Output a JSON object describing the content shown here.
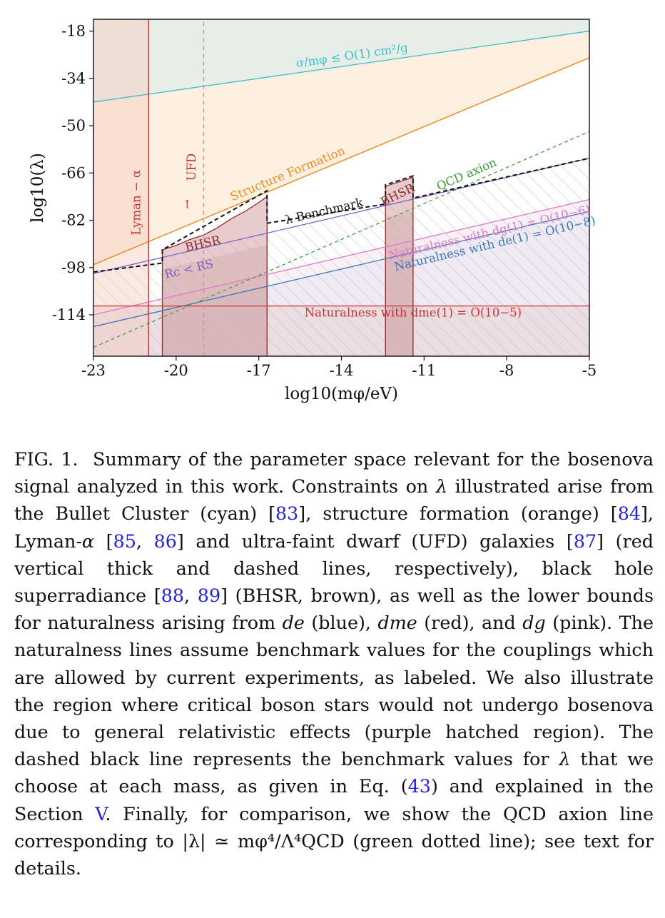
{
  "chart_data": {
    "type": "line",
    "xlabel": "log10(mφ/eV)",
    "ylabel": "log10(λ)",
    "xlim": [
      -23,
      -5
    ],
    "ylim": [
      -128,
      -14
    ],
    "xticks": [
      -23,
      -20,
      -17,
      -14,
      -11,
      -8,
      -5
    ],
    "yticks": [
      -18,
      -34,
      -50,
      -66,
      -82,
      -98,
      -114
    ],
    "grid": false,
    "series": [
      {
        "name": "σ/mφ ≲ O(1) cm²/g",
        "color": "#3cbfcb",
        "x": [
          -23,
          -5
        ],
        "y": [
          -42,
          -18
        ]
      },
      {
        "name": "Structure Formation",
        "color": "#f08a24",
        "x": [
          -23,
          -5
        ],
        "y": [
          -97,
          -27
        ]
      },
      {
        "name": "QCD axion",
        "color": "#3a9a3a",
        "style": "dashed",
        "x": [
          -23,
          -5
        ],
        "y": [
          -125,
          -52
        ]
      },
      {
        "name": "λ Benchmark",
        "color": "#111111",
        "style": "dashed",
        "x": [
          -23,
          -20.5,
          -20.5,
          -16.7,
          -16.7,
          -12.4,
          -12.4,
          -11.4,
          -11.4,
          -5
        ],
        "y": [
          -99.5,
          -96.5,
          -92,
          -72,
          -83,
          -76.5,
          -70,
          -67,
          -74.5,
          -61
        ]
      },
      {
        "name": "BHSR",
        "color": "#8b2a2a",
        "x": [
          -20.5,
          -20.5,
          -20,
          -19.5,
          -19,
          -18.5,
          -18,
          -17.5,
          -17,
          -16.7,
          -16.7
        ],
        "y": [
          -128,
          -92,
          -90.5,
          -88.5,
          -87,
          -84.5,
          -81.5,
          -79,
          -76,
          -74,
          -128
        ]
      },
      {
        "name": "BHSR",
        "color": "#8b2a2a",
        "x": [
          -12.4,
          -12.4,
          -11.4,
          -11.4
        ],
        "y": [
          -128,
          -70.5,
          -67.5,
          -128
        ]
      },
      {
        "name": "Rc < Rs",
        "color": "#7a5fc8",
        "x": [
          -23,
          -5
        ],
        "y": [
          -100,
          -61
        ]
      },
      {
        "name": "Naturalness with dg(1) = O(10^-6)",
        "color": "#e07ac8",
        "x": [
          -23,
          -5
        ],
        "y": [
          -114,
          -75
        ]
      },
      {
        "name": "Naturalness with de(1) = O(10^-8)",
        "color": "#3a78b8",
        "x": [
          -23,
          -5
        ],
        "y": [
          -118,
          -79
        ]
      },
      {
        "name": "Naturalness with dme(1) = O(10^-5)",
        "color": "#cc3333",
        "x": [
          -23,
          -5
        ],
        "y": [
          -111,
          -111
        ]
      },
      {
        "name": "Lyman − α",
        "color": "#cc3333",
        "x": [
          -21,
          -21
        ],
        "y": [
          -128,
          -14
        ]
      },
      {
        "name": "UFD",
        "color": "#e88a8a",
        "style": "dashed",
        "x": [
          -19,
          -19
        ],
        "y": [
          -128,
          -14
        ]
      }
    ],
    "annotations": {
      "lyman": "Lyman − α",
      "ufd": "UFD",
      "ufd_arrow": "↑",
      "bullet": "σ/mφ ≲ O(1) cm²/g",
      "structure": "Structure Formation",
      "qcd": "QCD axion",
      "benchmark": "λ Benchmark",
      "bhsr_left": "BHSR",
      "bhsr_right": "BHSR",
      "rcrs": "Rc < RS",
      "nat_dg": "Naturalness with dg(1) = O(10−6)",
      "nat_de": "Naturalness with de(1) = O(10−8)",
      "nat_dme": "Naturalness with dme(1) = O(10−5)"
    }
  },
  "caption": {
    "fig_label": "FIG. 1.",
    "text_1": "Summary of the parameter space relevant for the bosenova signal analyzed in this work. Constraints on ",
    "lambda": "λ",
    "text_2": " illustrated arise from the Bullet Cluster (cyan) [",
    "ref_83": "83",
    "text_3": "], structure formation (orange) [",
    "ref_84": "84",
    "text_4": "], Lyman-",
    "alpha": "α",
    "text_5": " [",
    "ref_85": "85",
    "text_6": ", ",
    "ref_86": "86",
    "text_7": "] and ultra-faint dwarf (UFD) galaxies [",
    "ref_87": "87",
    "text_8": "] (red vertical thick and dashed lines, respectively), black hole superradiance [",
    "ref_88": "88",
    "text_9": ", ",
    "ref_89": "89",
    "text_10": "] (BHSR, brown), as well as the lower bounds for naturalness arising from ",
    "d_e": "de",
    "text_11": " (blue), ",
    "d_me": "dme",
    "text_12": " (red), and ",
    "d_g": "dg",
    "text_13": " (pink). The naturalness lines assume benchmark values for the couplings which are allowed by current experiments, as labeled. We also illustrate the region where critical boson stars would not undergo bosenova due to general relativistic effects (purple hatched region). The dashed black line represents the benchmark values for ",
    "lambda_2": "λ",
    "text_14": " that we choose at each mass, as given in Eq. (",
    "ref_43": "43",
    "text_15": ") and explained in the Section ",
    "ref_V": "V",
    "text_16": ". Finally, for comparison, we show the QCD axion line corresponding to |λ| ≃ mφ⁴/Λ⁴QCD (green dotted line); see text for details."
  }
}
